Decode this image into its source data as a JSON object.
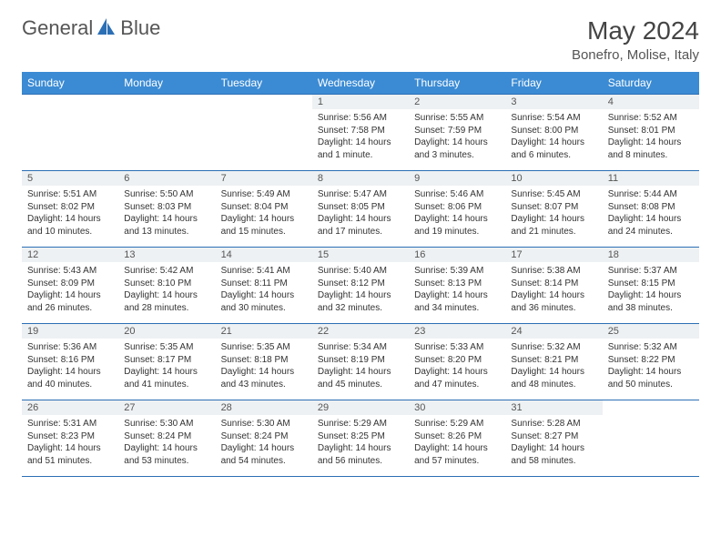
{
  "brand": {
    "word1": "General",
    "word2": "Blue"
  },
  "title": "May 2024",
  "location": "Bonefro, Molise, Italy",
  "colors": {
    "header_bg": "#3b8bd4",
    "header_text": "#ffffff",
    "rule": "#2c6fb5",
    "daynum_bg": "#eef1f3",
    "text": "#333333",
    "title_color": "#444444"
  },
  "weekdays": [
    "Sunday",
    "Monday",
    "Tuesday",
    "Wednesday",
    "Thursday",
    "Friday",
    "Saturday"
  ],
  "weeks": [
    [
      {
        "empty": true
      },
      {
        "empty": true
      },
      {
        "empty": true
      },
      {
        "day": "1",
        "sunrise": "Sunrise: 5:56 AM",
        "sunset": "Sunset: 7:58 PM",
        "daylight": "Daylight: 14 hours and 1 minute."
      },
      {
        "day": "2",
        "sunrise": "Sunrise: 5:55 AM",
        "sunset": "Sunset: 7:59 PM",
        "daylight": "Daylight: 14 hours and 3 minutes."
      },
      {
        "day": "3",
        "sunrise": "Sunrise: 5:54 AM",
        "sunset": "Sunset: 8:00 PM",
        "daylight": "Daylight: 14 hours and 6 minutes."
      },
      {
        "day": "4",
        "sunrise": "Sunrise: 5:52 AM",
        "sunset": "Sunset: 8:01 PM",
        "daylight": "Daylight: 14 hours and 8 minutes."
      }
    ],
    [
      {
        "day": "5",
        "sunrise": "Sunrise: 5:51 AM",
        "sunset": "Sunset: 8:02 PM",
        "daylight": "Daylight: 14 hours and 10 minutes."
      },
      {
        "day": "6",
        "sunrise": "Sunrise: 5:50 AM",
        "sunset": "Sunset: 8:03 PM",
        "daylight": "Daylight: 14 hours and 13 minutes."
      },
      {
        "day": "7",
        "sunrise": "Sunrise: 5:49 AM",
        "sunset": "Sunset: 8:04 PM",
        "daylight": "Daylight: 14 hours and 15 minutes."
      },
      {
        "day": "8",
        "sunrise": "Sunrise: 5:47 AM",
        "sunset": "Sunset: 8:05 PM",
        "daylight": "Daylight: 14 hours and 17 minutes."
      },
      {
        "day": "9",
        "sunrise": "Sunrise: 5:46 AM",
        "sunset": "Sunset: 8:06 PM",
        "daylight": "Daylight: 14 hours and 19 minutes."
      },
      {
        "day": "10",
        "sunrise": "Sunrise: 5:45 AM",
        "sunset": "Sunset: 8:07 PM",
        "daylight": "Daylight: 14 hours and 21 minutes."
      },
      {
        "day": "11",
        "sunrise": "Sunrise: 5:44 AM",
        "sunset": "Sunset: 8:08 PM",
        "daylight": "Daylight: 14 hours and 24 minutes."
      }
    ],
    [
      {
        "day": "12",
        "sunrise": "Sunrise: 5:43 AM",
        "sunset": "Sunset: 8:09 PM",
        "daylight": "Daylight: 14 hours and 26 minutes."
      },
      {
        "day": "13",
        "sunrise": "Sunrise: 5:42 AM",
        "sunset": "Sunset: 8:10 PM",
        "daylight": "Daylight: 14 hours and 28 minutes."
      },
      {
        "day": "14",
        "sunrise": "Sunrise: 5:41 AM",
        "sunset": "Sunset: 8:11 PM",
        "daylight": "Daylight: 14 hours and 30 minutes."
      },
      {
        "day": "15",
        "sunrise": "Sunrise: 5:40 AM",
        "sunset": "Sunset: 8:12 PM",
        "daylight": "Daylight: 14 hours and 32 minutes."
      },
      {
        "day": "16",
        "sunrise": "Sunrise: 5:39 AM",
        "sunset": "Sunset: 8:13 PM",
        "daylight": "Daylight: 14 hours and 34 minutes."
      },
      {
        "day": "17",
        "sunrise": "Sunrise: 5:38 AM",
        "sunset": "Sunset: 8:14 PM",
        "daylight": "Daylight: 14 hours and 36 minutes."
      },
      {
        "day": "18",
        "sunrise": "Sunrise: 5:37 AM",
        "sunset": "Sunset: 8:15 PM",
        "daylight": "Daylight: 14 hours and 38 minutes."
      }
    ],
    [
      {
        "day": "19",
        "sunrise": "Sunrise: 5:36 AM",
        "sunset": "Sunset: 8:16 PM",
        "daylight": "Daylight: 14 hours and 40 minutes."
      },
      {
        "day": "20",
        "sunrise": "Sunrise: 5:35 AM",
        "sunset": "Sunset: 8:17 PM",
        "daylight": "Daylight: 14 hours and 41 minutes."
      },
      {
        "day": "21",
        "sunrise": "Sunrise: 5:35 AM",
        "sunset": "Sunset: 8:18 PM",
        "daylight": "Daylight: 14 hours and 43 minutes."
      },
      {
        "day": "22",
        "sunrise": "Sunrise: 5:34 AM",
        "sunset": "Sunset: 8:19 PM",
        "daylight": "Daylight: 14 hours and 45 minutes."
      },
      {
        "day": "23",
        "sunrise": "Sunrise: 5:33 AM",
        "sunset": "Sunset: 8:20 PM",
        "daylight": "Daylight: 14 hours and 47 minutes."
      },
      {
        "day": "24",
        "sunrise": "Sunrise: 5:32 AM",
        "sunset": "Sunset: 8:21 PM",
        "daylight": "Daylight: 14 hours and 48 minutes."
      },
      {
        "day": "25",
        "sunrise": "Sunrise: 5:32 AM",
        "sunset": "Sunset: 8:22 PM",
        "daylight": "Daylight: 14 hours and 50 minutes."
      }
    ],
    [
      {
        "day": "26",
        "sunrise": "Sunrise: 5:31 AM",
        "sunset": "Sunset: 8:23 PM",
        "daylight": "Daylight: 14 hours and 51 minutes."
      },
      {
        "day": "27",
        "sunrise": "Sunrise: 5:30 AM",
        "sunset": "Sunset: 8:24 PM",
        "daylight": "Daylight: 14 hours and 53 minutes."
      },
      {
        "day": "28",
        "sunrise": "Sunrise: 5:30 AM",
        "sunset": "Sunset: 8:24 PM",
        "daylight": "Daylight: 14 hours and 54 minutes."
      },
      {
        "day": "29",
        "sunrise": "Sunrise: 5:29 AM",
        "sunset": "Sunset: 8:25 PM",
        "daylight": "Daylight: 14 hours and 56 minutes."
      },
      {
        "day": "30",
        "sunrise": "Sunrise: 5:29 AM",
        "sunset": "Sunset: 8:26 PM",
        "daylight": "Daylight: 14 hours and 57 minutes."
      },
      {
        "day": "31",
        "sunrise": "Sunrise: 5:28 AM",
        "sunset": "Sunset: 8:27 PM",
        "daylight": "Daylight: 14 hours and 58 minutes."
      },
      {
        "empty": true
      }
    ]
  ]
}
